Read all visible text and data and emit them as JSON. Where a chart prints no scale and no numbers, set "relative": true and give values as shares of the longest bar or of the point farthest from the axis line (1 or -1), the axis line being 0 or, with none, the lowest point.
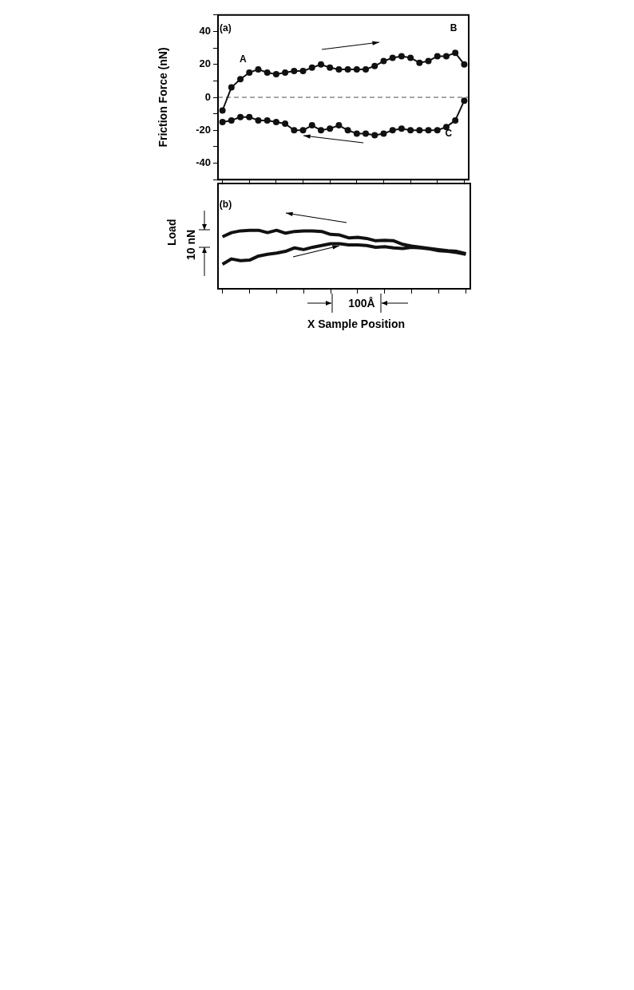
{
  "chart_data": [
    {
      "type": "line",
      "ylabel": "Friction Force (nN)",
      "categories": [
        null,
        null,
        null,
        null,
        null,
        null,
        null,
        null,
        null,
        null,
        null,
        null,
        null,
        null,
        null,
        null,
        null,
        null,
        null,
        null,
        null,
        null,
        null,
        null,
        null,
        null,
        null,
        null
      ],
      "series": [
        {
          "color": "#111111",
          "values": [
            -8,
            6,
            11,
            15,
            17,
            15,
            14,
            15,
            16,
            16,
            18,
            20,
            18,
            17,
            17,
            17,
            17,
            19,
            22,
            24,
            25,
            24,
            21,
            22,
            25,
            25,
            27,
            20
          ]
        },
        {
          "color": "#111111",
          "values": [
            -15,
            -14,
            -12,
            -12,
            -14,
            -14,
            -15,
            -16,
            -20,
            -20,
            -17,
            -20,
            -19,
            -17,
            -20,
            -22,
            -22,
            -23,
            -22,
            -20,
            -19,
            -20,
            -20,
            -20,
            -20,
            -18,
            -14,
            -2
          ]
        }
      ],
      "ylim": [
        -50,
        50
      ],
      "yticks": [
        {
          "value": -50,
          "label": null
        },
        -40,
        {
          "value": -30,
          "label": null
        },
        -20,
        {
          "value": -10,
          "label": null
        },
        0,
        {
          "value": 10,
          "label": null
        },
        20,
        {
          "value": 30,
          "label": null
        },
        40,
        {
          "value": 50,
          "label": null
        }
      ],
      "ref_lines": [
        {
          "axis": "y",
          "value": 0,
          "line_style": "dashed"
        }
      ],
      "marker": "circle",
      "tick_labels": "y",
      "grid": false,
      "legend": false,
      "annotations": [
        "(a)",
        "A",
        "B",
        "C"
      ]
    },
    {
      "type": "line",
      "relative": true,
      "ylabel": "Load",
      "xlabel": "X Sample Position",
      "categories": [
        null,
        null,
        null,
        null,
        null,
        null,
        null,
        null,
        null,
        null,
        null,
        null,
        null,
        null,
        null,
        null,
        null,
        null,
        null,
        null,
        null,
        null,
        null,
        null,
        null,
        null,
        null,
        null
      ],
      "series": [
        {
          "color": "#111111",
          "values": [
            0.89,
            0.96,
            0.99,
            1,
            1,
            0.96,
            1,
            0.95,
            0.98,
            0.99,
            0.99,
            0.98,
            0.93,
            0.92,
            0.87,
            0.88,
            0.86,
            0.82,
            0.83,
            0.82,
            0.76,
            0.73,
            0.71,
            0.69,
            0.67,
            0.65,
            0.64,
            0.6
          ]
        },
        {
          "color": "#111111",
          "values": [
            0.42,
            0.51,
            0.48,
            0.49,
            0.56,
            0.59,
            0.61,
            0.64,
            0.7,
            0.67,
            0.71,
            0.74,
            0.77,
            0.77,
            0.75,
            0.75,
            0.74,
            0.71,
            0.72,
            0.7,
            0.69,
            0.71,
            0.7,
            0.68,
            0.65,
            0.64,
            0.62,
            0.59
          ]
        }
      ],
      "tick_labels": false,
      "grid": false,
      "legend": false,
      "annotations": [
        "(b)",
        "10 nN",
        "100Å"
      ]
    }
  ]
}
